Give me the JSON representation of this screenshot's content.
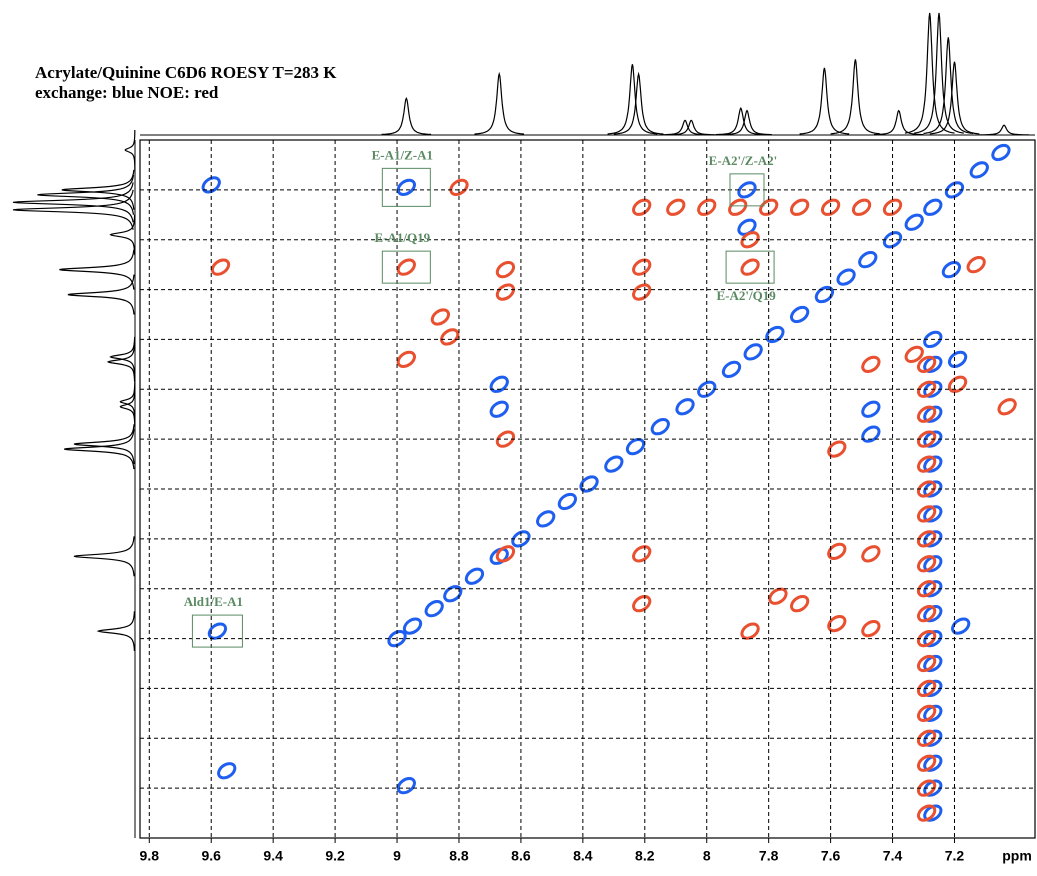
{
  "chart_data": {
    "type": "scatter",
    "title": "Acrylate/Quinine C6D6 ROESY T=283 K",
    "subtitle": "exchange: blue NOE: red",
    "x_label": "ppm",
    "xlim": [
      9.83,
      6.94
    ],
    "ylim": [
      7.0,
      9.8
    ],
    "xticks": [
      9.8,
      9.6,
      9.4,
      9.2,
      9.0,
      8.8,
      8.6,
      8.4,
      8.2,
      8.0,
      7.8,
      7.6,
      7.4,
      7.2
    ],
    "yticks": [
      7.2,
      7.4,
      7.6,
      7.8,
      8.0,
      8.2,
      8.4,
      8.6,
      8.8,
      9.0,
      9.2,
      9.4,
      9.6
    ],
    "grid": true,
    "series": [
      {
        "color": "#1f5ff0",
        "x": [
          9.6,
          8.97,
          9.58,
          9.55,
          8.97,
          7.87,
          7.87,
          8.67,
          8.67,
          7.18,
          7.47,
          7.47,
          7.21,
          7.19,
          9.0,
          8.95,
          8.88,
          8.82,
          8.75,
          8.67,
          8.6,
          8.52,
          8.45,
          8.38,
          8.3,
          8.23,
          8.15,
          8.07,
          8.0,
          7.92,
          7.85,
          7.78,
          7.7,
          7.62,
          7.55,
          7.48,
          7.4,
          7.33,
          7.27,
          7.2,
          7.12,
          7.05,
          7.27,
          7.27,
          7.27,
          7.27,
          7.27,
          7.27,
          7.27,
          7.27,
          7.27,
          7.27,
          7.27,
          7.27,
          7.27,
          7.27,
          7.27,
          7.27,
          7.27,
          7.27,
          7.27,
          7.27
        ],
        "y": [
          7.18,
          7.19,
          8.97,
          9.53,
          9.59,
          7.35,
          7.2,
          7.98,
          8.08,
          8.95,
          8.18,
          8.08,
          7.52,
          7.88,
          9.0,
          8.95,
          8.88,
          8.82,
          8.75,
          8.67,
          8.6,
          8.52,
          8.45,
          8.38,
          8.3,
          8.23,
          8.15,
          8.07,
          8.0,
          7.92,
          7.85,
          7.78,
          7.7,
          7.62,
          7.55,
          7.48,
          7.4,
          7.33,
          7.27,
          7.2,
          7.12,
          7.05,
          7.8,
          7.9,
          8.0,
          8.1,
          8.2,
          8.3,
          8.4,
          8.5,
          8.6,
          8.7,
          8.8,
          8.9,
          9.0,
          9.1,
          9.2,
          9.3,
          9.4,
          9.5,
          9.6,
          9.7
        ]
      },
      {
        "color": "#e8502f",
        "x": [
          8.8,
          8.97,
          9.57,
          8.65,
          8.65,
          8.21,
          8.21,
          8.21,
          7.86,
          7.86,
          8.86,
          8.83,
          8.97,
          8.65,
          7.47,
          7.58,
          7.58,
          8.21,
          8.65,
          7.47,
          8.21,
          7.77,
          7.7,
          7.86,
          7.58,
          7.47,
          7.33,
          7.19,
          7.13,
          7.03,
          8.1,
          8.0,
          7.9,
          7.8,
          7.7,
          7.6,
          7.5,
          7.4,
          7.29,
          7.29,
          7.29,
          7.29,
          7.29,
          7.29,
          7.29,
          7.29,
          7.29,
          7.29,
          7.29,
          7.29,
          7.29,
          7.29,
          7.29,
          7.29,
          7.29,
          7.29,
          7.29
        ],
        "y": [
          7.19,
          7.51,
          7.51,
          7.52,
          7.61,
          7.27,
          7.51,
          7.61,
          7.51,
          7.4,
          7.71,
          7.79,
          7.88,
          8.2,
          7.9,
          8.24,
          8.65,
          8.66,
          8.66,
          8.66,
          8.86,
          8.83,
          8.86,
          8.97,
          8.94,
          8.96,
          7.86,
          7.98,
          7.5,
          8.07,
          7.27,
          7.27,
          7.27,
          7.27,
          7.27,
          7.27,
          7.27,
          7.27,
          7.9,
          8.0,
          8.1,
          8.2,
          8.3,
          8.4,
          8.5,
          8.6,
          8.7,
          8.8,
          8.9,
          9.0,
          9.1,
          9.2,
          9.3,
          9.4,
          9.5,
          9.6,
          9.7
        ]
      }
    ],
    "projection": {
      "x": [
        8.97,
        8.67,
        8.24,
        8.22,
        8.07,
        8.05,
        7.89,
        7.87,
        7.62,
        7.52,
        7.38,
        7.28,
        7.25,
        7.22,
        7.2,
        7.04
      ],
      "values": [
        30,
        50,
        58,
        50,
        12,
        12,
        22,
        20,
        55,
        62,
        20,
        100,
        100,
        80,
        60,
        8
      ]
    },
    "annotations": [
      {
        "text": "E-A1/Z-A1",
        "x": 8.97,
        "y": 7.19,
        "placement": "above"
      },
      {
        "text": "E-A1/Q19",
        "x": 8.97,
        "y": 7.51,
        "placement": "above"
      },
      {
        "text": "E-A2'/Z-A2'",
        "x": 7.87,
        "y": 7.2,
        "placement": "above"
      },
      {
        "text": "E-A2'/Q19",
        "x": 7.86,
        "y": 7.51,
        "placement": "below"
      },
      {
        "text": "Ald1/E-A1",
        "x": 9.58,
        "y": 8.97,
        "placement": "above"
      }
    ]
  }
}
